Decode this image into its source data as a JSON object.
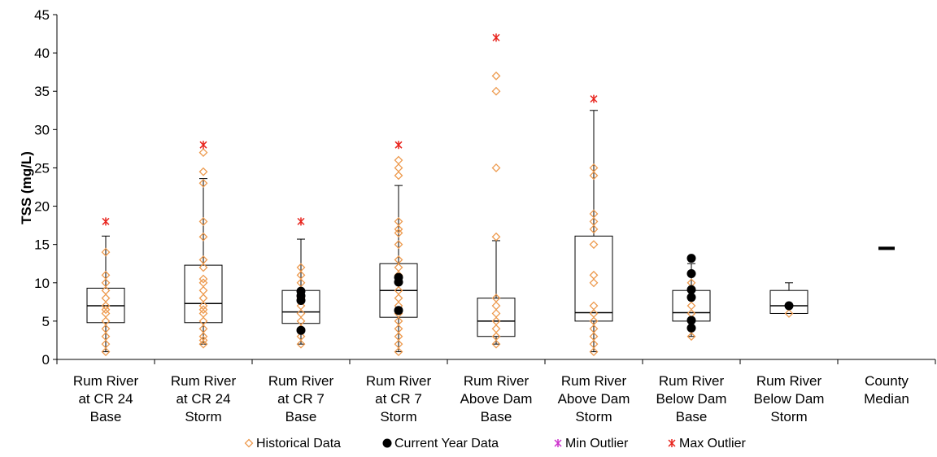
{
  "chart_data": {
    "type": "box",
    "ylabel": "TSS (mg/L)",
    "ylim": [
      0,
      45
    ],
    "yticks": [
      0,
      5,
      10,
      15,
      20,
      25,
      30,
      35,
      40,
      45
    ],
    "grid": false,
    "legend_position": "bottom",
    "colors": {
      "historical": "#ED9A4E",
      "current": "#000000",
      "min_outlier": "#CC33CC",
      "max_outlier": "#E8231C",
      "box": "#000000"
    },
    "legend": [
      {
        "key": "historical",
        "label": "Historical Data"
      },
      {
        "key": "current",
        "label": "Current Year Data"
      },
      {
        "key": "min_outlier",
        "label": "Min Outlier"
      },
      {
        "key": "max_outlier",
        "label": "Max Outlier"
      }
    ],
    "categories": [
      {
        "label_lines": [
          "Rum River",
          "at CR 24",
          "Base"
        ],
        "box": {
          "whisker_low": 1,
          "q1": 4.8,
          "median": 7,
          "q3": 9.3,
          "whisker_high": 16.1
        },
        "historical": [
          1,
          2,
          3,
          4,
          5,
          6,
          6.5,
          7,
          8,
          9,
          10,
          11,
          14
        ],
        "current": [],
        "max_outliers": [
          18
        ],
        "min_outliers": []
      },
      {
        "label_lines": [
          "Rum River",
          "at CR 24",
          "Storm"
        ],
        "box": {
          "whisker_low": 2,
          "q1": 4.8,
          "median": 7.3,
          "q3": 12.3,
          "whisker_high": 23.6
        },
        "historical": [
          2,
          2.5,
          3,
          4,
          5,
          6,
          6.5,
          7,
          8,
          9,
          10,
          10.5,
          12,
          13,
          16,
          18,
          23,
          24.5,
          27
        ],
        "current": [],
        "max_outliers": [
          28
        ],
        "min_outliers": []
      },
      {
        "label_lines": [
          "Rum River",
          "at CR 7",
          "Base"
        ],
        "box": {
          "whisker_low": 2,
          "q1": 4.7,
          "median": 6.2,
          "q3": 9,
          "whisker_high": 15.7
        },
        "historical": [
          2,
          3,
          4,
          5,
          6,
          7,
          8,
          9,
          10,
          11,
          12
        ],
        "current": [
          3.8,
          7.7,
          8.3,
          8.9
        ],
        "max_outliers": [
          18
        ],
        "min_outliers": []
      },
      {
        "label_lines": [
          "Rum River",
          "at CR 7",
          "Storm"
        ],
        "box": {
          "whisker_low": 1,
          "q1": 5.5,
          "median": 9,
          "q3": 12.5,
          "whisker_high": 22.7
        },
        "historical": [
          1,
          2,
          3,
          4,
          5,
          6,
          7,
          8,
          9,
          10,
          11,
          12,
          13,
          15,
          16.5,
          17,
          18,
          24,
          25,
          26
        ],
        "current": [
          6.4,
          10.1,
          10.7
        ],
        "max_outliers": [
          28
        ],
        "min_outliers": []
      },
      {
        "label_lines": [
          "Rum River",
          "Above Dam",
          "Base"
        ],
        "box": {
          "whisker_low": 2,
          "q1": 3,
          "median": 5,
          "q3": 8,
          "whisker_high": 15.5
        },
        "historical": [
          2,
          3,
          4,
          5,
          6,
          7,
          8,
          16,
          25,
          35,
          37
        ],
        "current": [],
        "max_outliers": [
          42
        ],
        "min_outliers": []
      },
      {
        "label_lines": [
          "Rum River",
          "Above Dam",
          "Storm"
        ],
        "box": {
          "whisker_low": 1,
          "q1": 5,
          "median": 6.1,
          "q3": 16.1,
          "whisker_high": 32.5
        },
        "historical": [
          1,
          2,
          3,
          4,
          5,
          6,
          7,
          10,
          11,
          15,
          17,
          18,
          19,
          24,
          25
        ],
        "current": [],
        "max_outliers": [
          34
        ],
        "min_outliers": []
      },
      {
        "label_lines": [
          "Rum River",
          "Below Dam",
          "Base"
        ],
        "box": {
          "whisker_low": 3,
          "q1": 5,
          "median": 6.1,
          "q3": 9,
          "whisker_high": 12.5
        },
        "historical": [
          3,
          4,
          5,
          6,
          7,
          8,
          10
        ],
        "current": [
          4.1,
          5.1,
          8.1,
          9.1,
          11.2,
          13.2
        ],
        "max_outliers": [],
        "min_outliers": []
      },
      {
        "label_lines": [
          "Rum River",
          "Below Dam",
          "Storm"
        ],
        "box": {
          "whisker_low": 6,
          "q1": 6,
          "median": 7,
          "q3": 9,
          "whisker_high": 10
        },
        "historical": [
          6,
          7
        ],
        "current": [
          7
        ],
        "max_outliers": [],
        "min_outliers": []
      },
      {
        "label_lines": [
          "County",
          "Median"
        ],
        "median_marker": 14.5,
        "historical": [],
        "current": [],
        "max_outliers": [],
        "min_outliers": []
      }
    ]
  }
}
